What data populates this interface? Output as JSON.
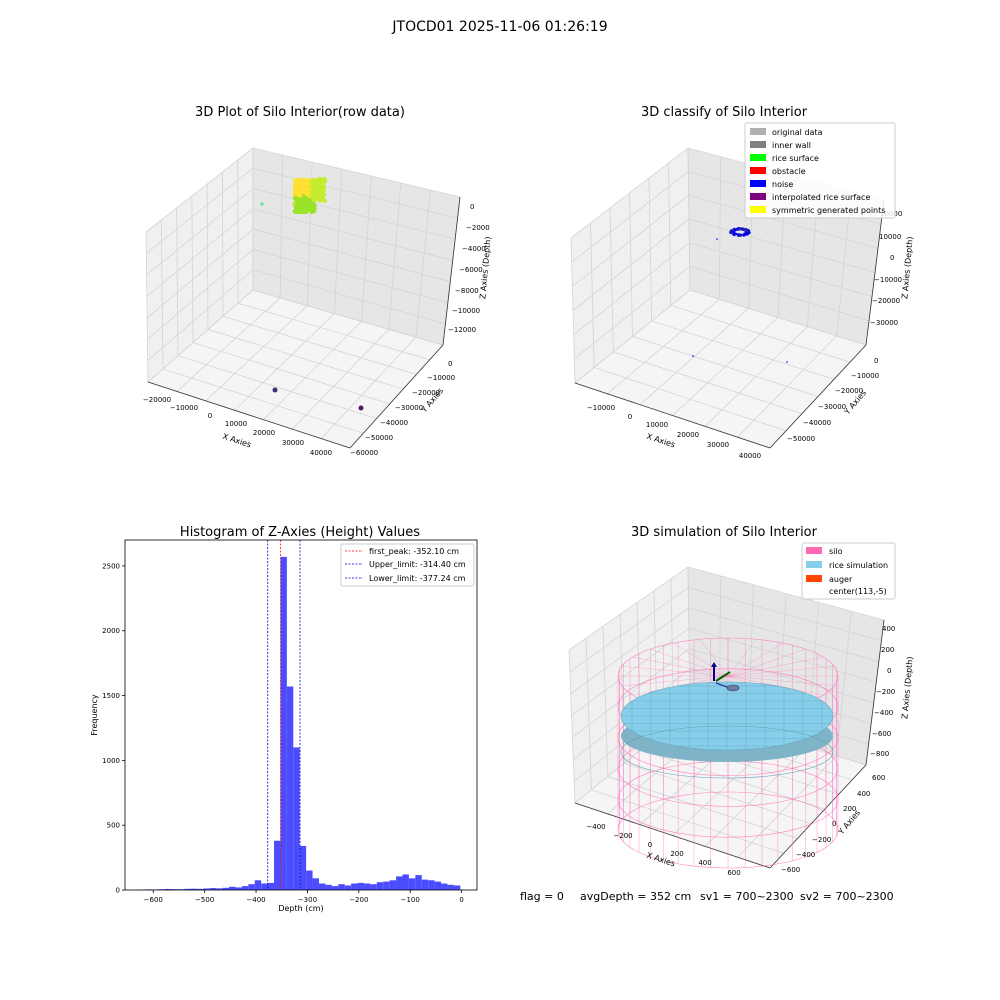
{
  "suptitle": "JTOCD01 2025-11-06 01:26:19",
  "status_line": {
    "flag": "flag = 0",
    "avg": "avgDepth = 352 cm",
    "sv1": "sv1 = 700~2300",
    "sv2": "sv2 = 700~2300"
  },
  "colors": {
    "original": "#b0b0b0",
    "inner_wall": "#808080",
    "rice_surface": "#00ff00",
    "obstacle": "#ff0000",
    "noise": "#0000ff",
    "interp": "#800080",
    "symmetric": "#ffff00",
    "silo": "#ff69b4",
    "rice_sim": "#87ceeb",
    "auger": "#ff4500",
    "hist_bar": "#4c4cff"
  },
  "chart_data": [
    {
      "type": "scatter",
      "title": "3D Plot of Silo Interior(row data)",
      "xlabel": "X Axies",
      "ylabel": "Y Axies",
      "zlabel": "Z Axies (Depth)",
      "x_ticks": [
        "−20000",
        "−10000",
        "0",
        "10000",
        "20000",
        "30000",
        "40000"
      ],
      "y_ticks": [
        "0",
        "−10000",
        "−20000",
        "−30000",
        "−40000",
        "−50000",
        "−60000"
      ],
      "z_ticks": [
        "0",
        "−2000",
        "−4000",
        "−6000",
        "−8000",
        "−10000",
        "−12000"
      ],
      "clusters": [
        {
          "x": 0,
          "y": 0,
          "z": -200,
          "color": "yellow-green"
        },
        {
          "x": 10000,
          "y": -50000,
          "z": -12000
        },
        {
          "x": 30000,
          "y": -55000,
          "z": -12000
        }
      ]
    },
    {
      "type": "scatter",
      "title": "3D classify of Silo Interior",
      "xlabel": "X Axies",
      "ylabel": "Y Axies",
      "zlabel": "Z Axies (Depth)",
      "x_ticks": [
        "−10000",
        "0",
        "10000",
        "20000",
        "30000",
        "40000"
      ],
      "y_ticks": [
        "0",
        "−10000",
        "−20000",
        "−30000",
        "−40000",
        "−50000"
      ],
      "z_ticks": [
        "10000",
        "0",
        "−10000",
        "−20000",
        "−30000"
      ],
      "legend": [
        "original data",
        "inner wall",
        "rice surface",
        "obstacle",
        "noise",
        "interpolated rice surface",
        "symmetric generated points"
      ],
      "legend_loc": "upper right"
    },
    {
      "type": "bar",
      "title": "Histogram of Z-Axies (Height) Values",
      "xlabel": "Depth (cm)",
      "ylabel": "Frequency",
      "xlim": [
        -655,
        30
      ],
      "ylim": [
        0,
        2700
      ],
      "x_ticks": [
        -600,
        -500,
        -400,
        -300,
        -200,
        -100,
        0
      ],
      "y_ticks": [
        0,
        500,
        1000,
        1500,
        2000,
        2500
      ],
      "bin_width": 12.5,
      "bins_start": [
        -640,
        -627.5,
        -615,
        -602.5,
        -590,
        -577.5,
        -565,
        -552.5,
        -540,
        -527.5,
        -515,
        -502.5,
        -490,
        -477.5,
        -465,
        -452.5,
        -440,
        -427.5,
        -415,
        -402.5,
        -390,
        -377.5,
        -365,
        -352.5,
        -340,
        -327.5,
        -315,
        -302.5,
        -290,
        -277.5,
        -265,
        -252.5,
        -240,
        -227.5,
        -215,
        -202.5,
        -190,
        -177.5,
        -165,
        -152.5,
        -140,
        -127.5,
        -115,
        -102.5,
        -90,
        -77.5,
        -65,
        -52.5,
        -40,
        -27.5,
        -15
      ],
      "values": [
        2,
        3,
        5,
        4,
        6,
        8,
        7,
        6,
        9,
        10,
        9,
        12,
        15,
        13,
        17,
        25,
        20,
        30,
        45,
        75,
        50,
        55,
        380,
        2570,
        1570,
        1100,
        340,
        150,
        90,
        50,
        40,
        30,
        45,
        35,
        50,
        55,
        50,
        45,
        60,
        65,
        75,
        105,
        120,
        90,
        115,
        80,
        75,
        65,
        50,
        40,
        35
      ],
      "lines": [
        {
          "label": "first_peak: -352.10 cm",
          "x": -352.1,
          "color": "#ff0000"
        },
        {
          "label": "Upper_limit: -314.40 cm",
          "x": -314.4,
          "color": "#0000cc"
        },
        {
          "label": "Lower_limit: -377.24 cm",
          "x": -377.24,
          "color": "#0000cc"
        }
      ]
    },
    {
      "type": "surface",
      "title": "3D simulation of Silo Interior",
      "xlabel": "X Axies",
      "ylabel": "Y Axies",
      "zlabel": "Z Axies (Depth)",
      "x_ticks": [
        "−400",
        "−200",
        "0",
        "200",
        "400",
        "600"
      ],
      "y_ticks": [
        "600",
        "400",
        "200",
        "0",
        "−200",
        "−400",
        "−600"
      ],
      "z_ticks": [
        "400",
        "200",
        "0",
        "−200",
        "−400",
        "−600",
        "−800"
      ],
      "legend": [
        "silo",
        "rice simulation",
        "auger",
        "center(113,-5)"
      ],
      "legend_loc": "upper right"
    }
  ]
}
